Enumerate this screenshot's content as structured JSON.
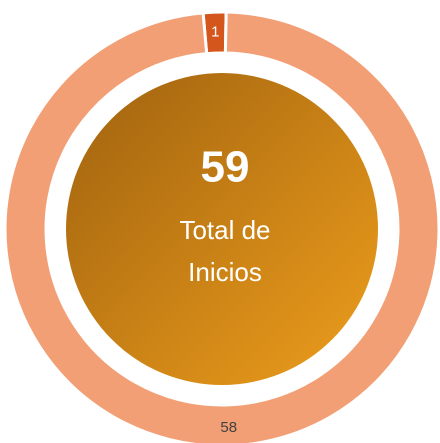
{
  "chart_data": {
    "type": "donut",
    "values": [
      1,
      58
    ],
    "colors": [
      "#d5561d",
      "#f29f75"
    ],
    "center_value": 59,
    "center_label": [
      "Total de",
      "Inicios"
    ]
  }
}
